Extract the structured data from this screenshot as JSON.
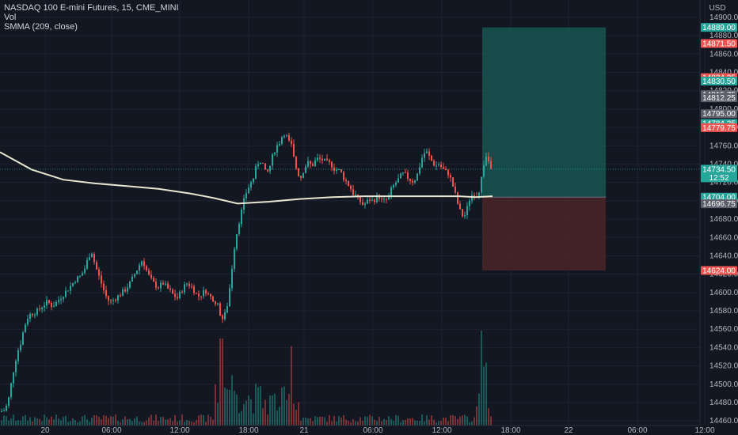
{
  "legend": {
    "symbol": "NASDAQ 100 E-mini Futures, 15, CME_MINI",
    "vol": "Vol",
    "smma": "SMMA (209, close)"
  },
  "currency": "USD",
  "countdown": "12:52",
  "colors": {
    "background": "#131722",
    "up": "#26a69a",
    "down": "#ef5350",
    "smma": "#e8e6d0",
    "profit_zone": "#1a5e58",
    "loss_zone": "#4a2427",
    "grid": "#1e2230",
    "gray_badge": "#5d606b"
  },
  "chart_data": {
    "type": "candlestick",
    "ylim": [
      14455,
      14912
    ],
    "y_ticks": [
      14460,
      14480,
      14500,
      14520,
      14540,
      14560,
      14580,
      14600,
      14620,
      14640,
      14660,
      14680,
      14700,
      14720,
      14740,
      14760,
      14780,
      14800,
      14820,
      14840,
      14860,
      14880,
      14900
    ],
    "x_ticks": [
      "20",
      "06:00",
      "12:00",
      "18:00",
      "21",
      "06:00",
      "12:00",
      "18:00",
      "22",
      "06:00",
      "12:00"
    ],
    "smma_points": [
      [
        0,
        14753
      ],
      [
        40,
        14734
      ],
      [
        80,
        14723
      ],
      [
        120,
        14719
      ],
      [
        160,
        14716
      ],
      [
        200,
        14713
      ],
      [
        240,
        14708
      ],
      [
        270,
        14703
      ],
      [
        300,
        14697
      ],
      [
        340,
        14699
      ],
      [
        380,
        14702
      ],
      [
        420,
        14704
      ],
      [
        460,
        14705
      ],
      [
        500,
        14705
      ],
      [
        540,
        14705
      ],
      [
        580,
        14705
      ],
      [
        600,
        14704
      ],
      [
        622,
        14705
      ]
    ],
    "price_badges": [
      {
        "label": "14889.00",
        "price": 14889,
        "color": "#26a69a"
      },
      {
        "label": "14871.50",
        "price": 14871.5,
        "color": "#ef5350"
      },
      {
        "label": "14834.25",
        "price": 14834.25,
        "color": "#ef5350"
      },
      {
        "label": "14830.50",
        "price": 14830.5,
        "color": "#26a69a"
      },
      {
        "label": "14815.75",
        "price": 14815.75,
        "color": "#5d606b"
      },
      {
        "label": "14812.25",
        "price": 14812.25,
        "color": "#5d606b"
      },
      {
        "label": "14795.00",
        "price": 14795,
        "color": "#5d606b"
      },
      {
        "label": "14784.25",
        "price": 14784.25,
        "color": "#26a69a"
      },
      {
        "label": "14779.75",
        "price": 14779.75,
        "color": "#ef5350"
      },
      {
        "label": "14734.50",
        "price": 14734.5,
        "color": "#26a69a"
      },
      {
        "label": "14704.00",
        "price": 14704,
        "color": "#26a69a"
      },
      {
        "label": "14696.75",
        "price": 14696.75,
        "color": "#5d606b"
      },
      {
        "label": "14624.00",
        "price": 14624,
        "color": "#ef5350"
      }
    ],
    "position": {
      "entry": 14704.0,
      "take_profit": 14889.0,
      "stop_loss": 14624.0
    },
    "current_price": 14734.5
  }
}
